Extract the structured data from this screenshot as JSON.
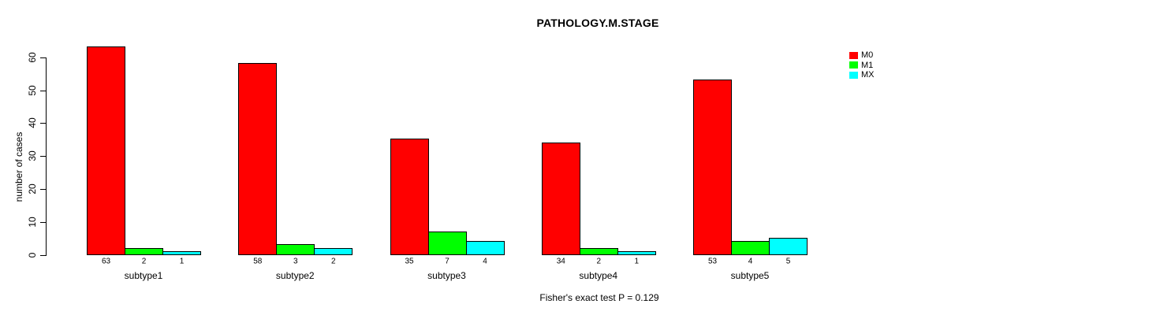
{
  "title": "PATHOLOGY.M.STAGE",
  "footer": "Fisher's exact test P = 0.129",
  "y_axis": {
    "label": "number of cases",
    "ticks": [
      0,
      10,
      20,
      30,
      40,
      50,
      60
    ]
  },
  "legend": {
    "items": [
      {
        "label": "M0",
        "color": "#FF0000"
      },
      {
        "label": "M1",
        "color": "#00FF00"
      },
      {
        "label": "MX",
        "color": "#00FFFF"
      }
    ]
  },
  "chart_data": {
    "type": "bar",
    "title": "PATHOLOGY.M.STAGE",
    "categories": [
      "subtype1",
      "subtype2",
      "subtype3",
      "subtype4",
      "subtype5"
    ],
    "series": [
      {
        "name": "M0",
        "color": "#FF0000",
        "values": [
          63,
          58,
          35,
          34,
          53
        ]
      },
      {
        "name": "M1",
        "color": "#00FF00",
        "values": [
          2,
          3,
          7,
          2,
          4
        ]
      },
      {
        "name": "MX",
        "color": "#00FFFF",
        "values": [
          1,
          2,
          4,
          1,
          5
        ]
      }
    ],
    "xlabel": "",
    "ylabel": "number of cases",
    "ylim": [
      0,
      63
    ],
    "yticks": [
      0,
      10,
      20,
      30,
      40,
      50,
      60
    ],
    "grid": false,
    "bar_border_color": "#000000",
    "bar_value_labels": true,
    "legend_position": "top-right",
    "annotation": "Fisher's exact test P = 0.129"
  }
}
